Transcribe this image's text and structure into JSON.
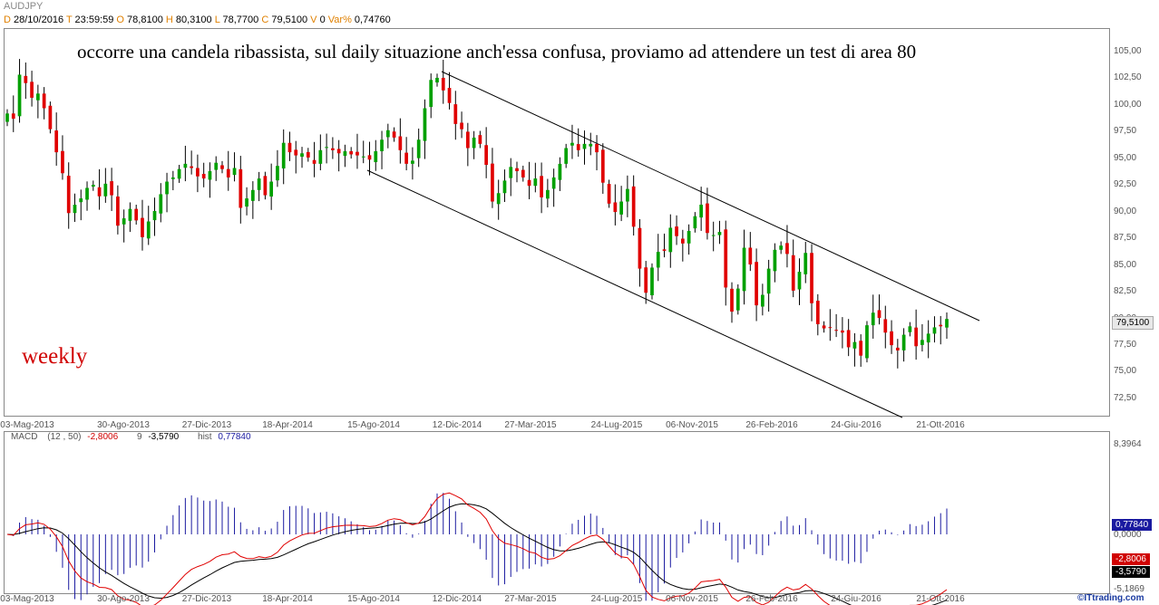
{
  "header": {
    "symbol": "AUDJPY",
    "date": "28/10/2016",
    "time": "23:59:59",
    "open": "78,8100",
    "high": "80,3100",
    "low": "78,7700",
    "close": "79,5100",
    "volume": "0",
    "var_pct": "0,74760"
  },
  "annotations": {
    "main_text": "occorre una candela ribassista, sul daily situazione anch'essa confusa, proviamo ad attendere un test di area 80",
    "timeframe": "weekly"
  },
  "price_axis_labels": [
    "105,00",
    "102,50",
    "100,00",
    "97,50",
    "95,00",
    "92,50",
    "90,00",
    "87,50",
    "85,00",
    "82,50",
    "80,00",
    "77,50",
    "75,00",
    "72,50"
  ],
  "date_labels": [
    "03-Mag-2013",
    "30-Ago-2013",
    "27-Dic-2013",
    "18-Apr-2014",
    "15-Ago-2014",
    "12-Dic-2014",
    "27-Mar-2015",
    "24-Lug-2015",
    "06-Nov-2015",
    "26-Feb-2016",
    "24-Giu-2016",
    "21-Ott-2016"
  ],
  "last_price_label": "79,5100",
  "macd": {
    "label": "MACD",
    "params": "(12 , 50)",
    "macd_value": "-2,8006",
    "signal_period": "9",
    "signal_value": "-3,5790",
    "hist_label": "hist",
    "hist_value": "0,77840",
    "axis_top": "8,3964",
    "axis_zero": "0,0000",
    "axis_bottom": "-5,1869"
  },
  "watermark": "©ITtrading.com",
  "colors": {
    "up": "#00a000",
    "down": "#e00000",
    "macd_line": "#e00000",
    "signal_line": "#000000",
    "hist": "#1a1aa0"
  },
  "chart_data": [
    {
      "type": "candlestick",
      "title": "AUDJPY",
      "timeframe": "weekly",
      "ylim": [
        71,
        106
      ],
      "x_range": [
        "03-Mag-2013",
        "28-Ott-2016"
      ],
      "closes": [
        99.1,
        98.6,
        102.8,
        102.0,
        100.6,
        101.0,
        99.6,
        97.6,
        95.4,
        93.4,
        89.6,
        90.4,
        91.0,
        92.0,
        92.3,
        91.2,
        92.4,
        91.3,
        88.4,
        89.1,
        90.0,
        88.9,
        87.3,
        88.8,
        89.8,
        91.4,
        92.6,
        93.0,
        93.8,
        94.3,
        93.9,
        93.1,
        92.9,
        93.6,
        94.4,
        93.8,
        93.0,
        93.9,
        90.1,
        91.0,
        91.8,
        92.9,
        91.3,
        92.6,
        94.1,
        96.3,
        95.4,
        95.1,
        95.3,
        94.9,
        94.3,
        95.6,
        95.9,
        95.6,
        95.3,
        95.5,
        95.2,
        95.1,
        95.0,
        94.7,
        95.5,
        96.6,
        97.5,
        96.8,
        95.6,
        94.3,
        94.6,
        96.6,
        99.6,
        102.3,
        102.5,
        101.3,
        100.1,
        98.1,
        97.6,
        95.8,
        96.8,
        96.2,
        94.2,
        90.7,
        91.5,
        92.7,
        94.0,
        93.6,
        93.0,
        92.2,
        92.9,
        91.1,
        91.8,
        93.0,
        94.3,
        95.8,
        96.3,
        95.6,
        96.2,
        96.2,
        95.4,
        92.5,
        90.5,
        89.7,
        90.7,
        91.9,
        88.3,
        84.3,
        82.0,
        84.4,
        85.9,
        86.0,
        88.2,
        87.4,
        86.7,
        87.9,
        89.3,
        90.4,
        87.7,
        87.5,
        87.8,
        82.5,
        80.2,
        82.4,
        86.3,
        84.7,
        80.8,
        81.8,
        84.3,
        86.1,
        86.5,
        85.7,
        82.2,
        84.0,
        85.8,
        81.0,
        79.0,
        78.6,
        78.7,
        78.4,
        78.2,
        76.8,
        77.3,
        76.0,
        78.9,
        80.1,
        79.6,
        78.2,
        77.0,
        76.5,
        78.0,
        78.8,
        76.9,
        77.5,
        78.1,
        78.7,
        78.8,
        79.5
      ]
    },
    {
      "type": "line",
      "title": "MACD (12 , 50)",
      "ylim": [
        -5.1869,
        8.3964
      ],
      "series": [
        {
          "name": "MACD",
          "last": -2.8006
        },
        {
          "name": "9",
          "last": -3.579
        },
        {
          "name": "hist",
          "last": 0.7784
        }
      ]
    }
  ]
}
